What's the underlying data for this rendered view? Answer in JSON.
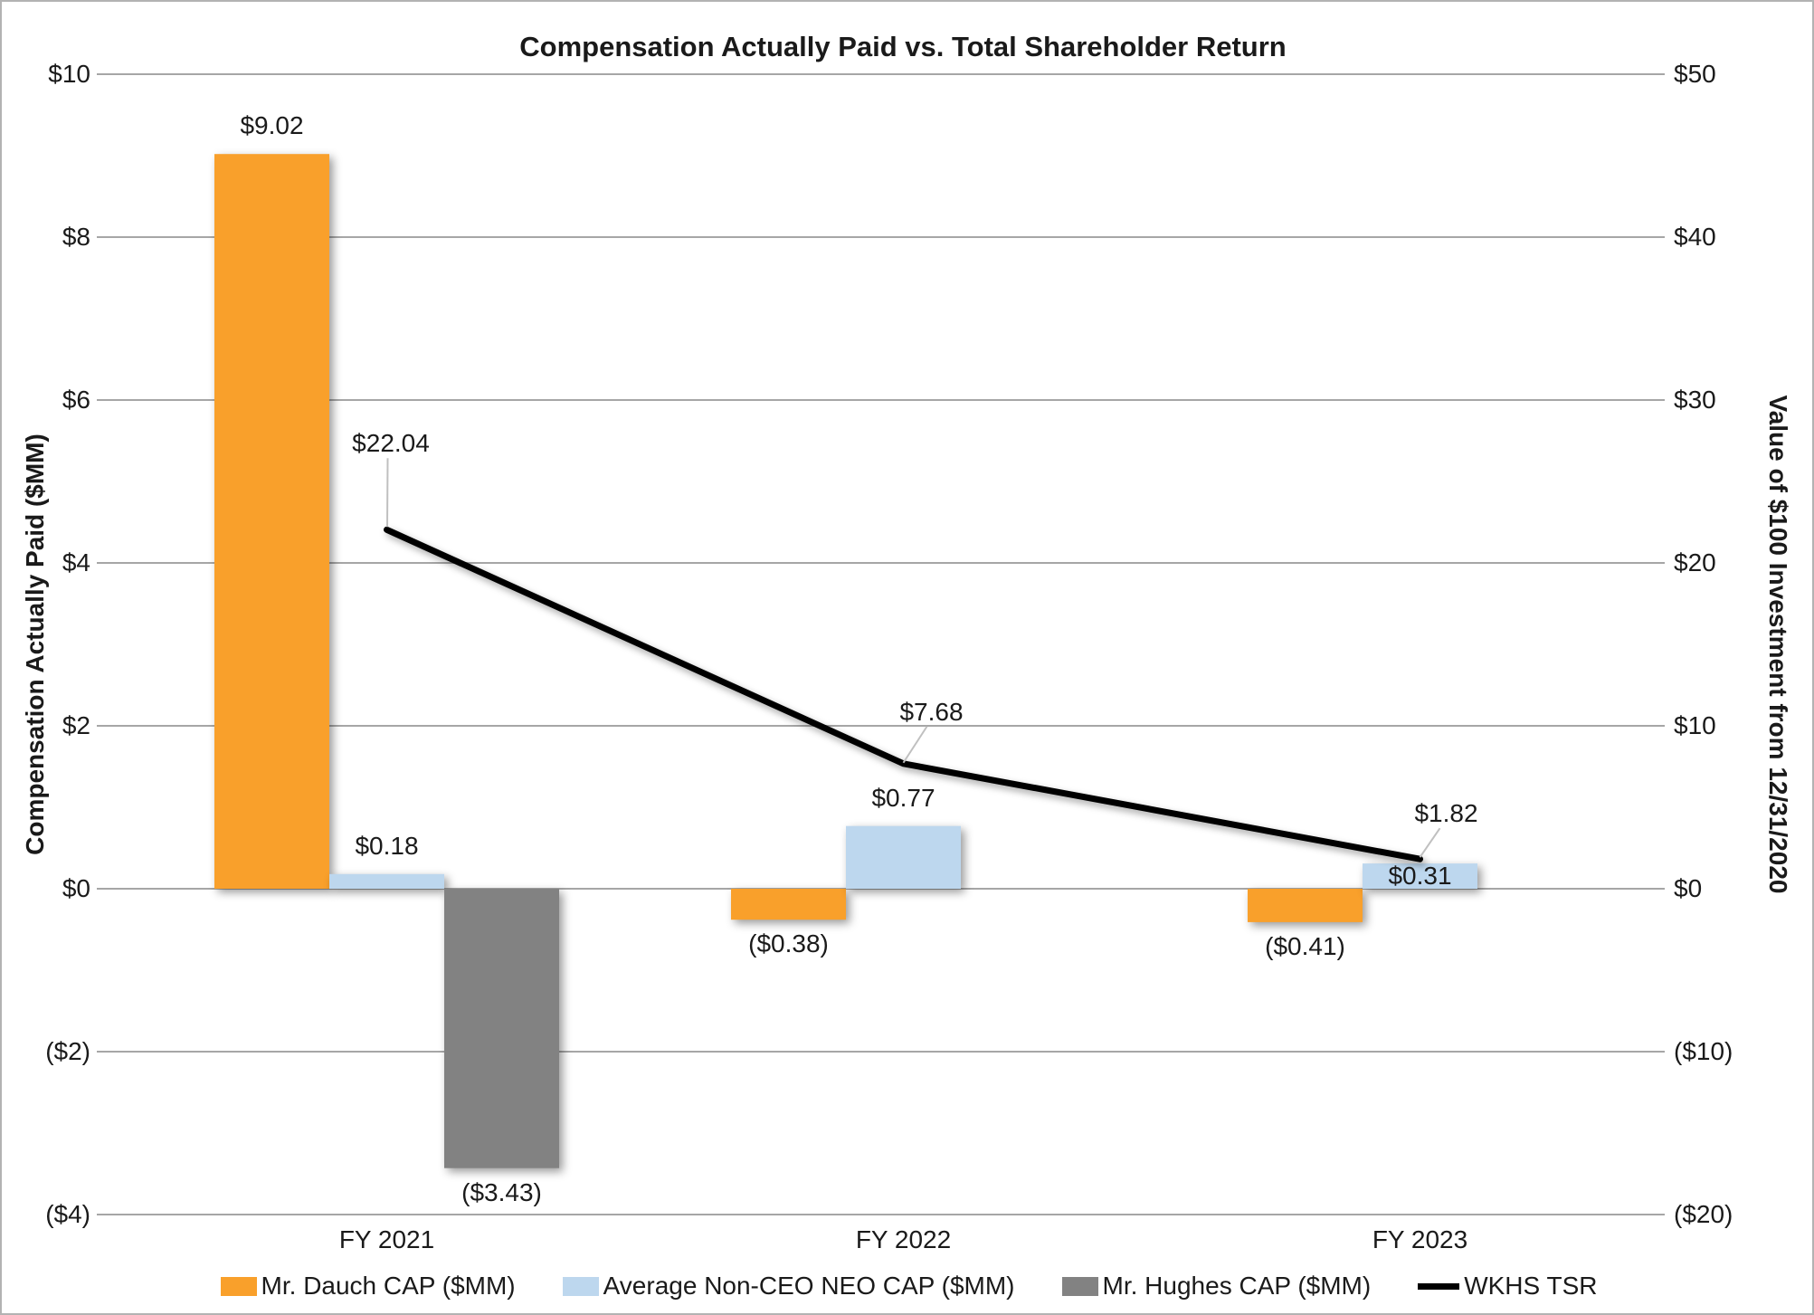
{
  "chart_data": {
    "type": "bar",
    "subtype": "combo-bar-line",
    "title": "Compensation Actually Paid vs. Total Shareholder Return",
    "categories": [
      "FY 2021",
      "FY 2022",
      "FY 2023"
    ],
    "bar_series": [
      {
        "name": "Mr. Dauch CAP ($MM)",
        "slug": "dauch",
        "color": "#F9A02B",
        "values": [
          9.02,
          -0.38,
          -0.41
        ],
        "labels": [
          "$9.02",
          "($0.38)",
          "($0.41)"
        ]
      },
      {
        "name": "Average Non-CEO NEO CAP ($MM)",
        "slug": "neo",
        "color": "#BDD7EE",
        "values": [
          0.18,
          0.77,
          0.31
        ],
        "labels": [
          "$0.18",
          "$0.77",
          "$0.31"
        ]
      },
      {
        "name": "Mr. Hughes CAP ($MM)",
        "slug": "hughes",
        "color": "#828282",
        "values": [
          -3.43,
          null,
          null
        ],
        "labels": [
          "($3.43)",
          null,
          null
        ]
      }
    ],
    "line_series": {
      "name": "WKHS TSR",
      "slug": "wkhs-tsr",
      "color": "#000000",
      "axis": "right",
      "values": [
        22.04,
        7.68,
        1.82
      ],
      "labels": [
        "$22.04",
        "$7.68",
        "$1.82"
      ]
    },
    "left_axis": {
      "title": "Compensation Actually Paid ($MM)",
      "min": -4,
      "max": 10,
      "step": 2,
      "ticks": [
        "$10",
        "$8",
        "$6",
        "$4",
        "$2",
        "$0",
        "($2)",
        "($4)"
      ]
    },
    "right_axis": {
      "title": "Value of $100 Investment from 12/31/2020",
      "min": -20,
      "max": 50,
      "step": 10,
      "ticks": [
        "$50",
        "$40",
        "$30",
        "$20",
        "$10",
        "$0",
        "($10)",
        "($20)"
      ]
    },
    "legend": [
      {
        "type": "rect",
        "color": "#F9A02B",
        "label": "Mr. Dauch CAP ($MM)"
      },
      {
        "type": "rect",
        "color": "#BDD7EE",
        "label": "Average Non-CEO NEO CAP ($MM)"
      },
      {
        "type": "rect",
        "color": "#828282",
        "label": "Mr. Hughes CAP ($MM)"
      },
      {
        "type": "line",
        "color": "#000000",
        "label": "WKHS TSR"
      }
    ],
    "grid": true,
    "legend_position": "bottom",
    "colors": {
      "gridline": "#a6a6a6",
      "leader_line": "#c0c0c0",
      "text": "#1a1a1a"
    }
  }
}
